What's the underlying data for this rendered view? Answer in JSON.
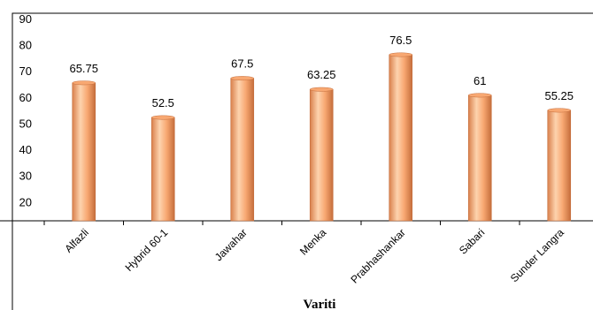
{
  "chart_data": {
    "type": "bar",
    "title": "",
    "xlabel": "Variti",
    "ylabel": "",
    "categories": [
      "Alfazli",
      "Hybrid 60-1",
      "Jawahar",
      "Menka",
      "Prabhashankar",
      "Sabari",
      "Sunder Langra"
    ],
    "values": [
      65.75,
      52.5,
      67.5,
      63.25,
      76.5,
      61,
      55.25
    ],
    "data_labels": [
      "65.75",
      "52.5",
      "67.5",
      "63.25",
      "76.5",
      "61",
      "55.25"
    ],
    "ylim": [
      13,
      90
    ],
    "yticks": [
      20,
      30,
      40,
      50,
      60,
      70,
      80,
      90
    ],
    "grid": false,
    "legend": "none",
    "colors": {
      "bar_light": "#FDD3AE",
      "bar_mid": "#F8A872",
      "bar_dark": "#D9804C",
      "bar_edge": "#C56E3C",
      "axis": "#000000"
    }
  }
}
